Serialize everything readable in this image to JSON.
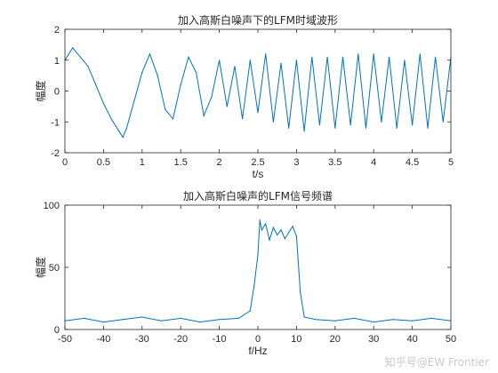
{
  "chart_data": [
    {
      "type": "line",
      "title": "加入高斯白噪声下的LFM时域波形",
      "xlabel": "t/s",
      "ylabel": "幅度",
      "xlim": [
        0,
        5
      ],
      "ylim": [
        -2,
        2
      ],
      "xticks": [
        "0",
        "0.5",
        "1",
        "1.5",
        "2",
        "2.5",
        "3",
        "3.5",
        "4",
        "4.5",
        "5"
      ],
      "yticks": [
        "-2",
        "-1",
        "0",
        "1",
        "2"
      ],
      "grid": false,
      "series": [
        {
          "color": "#0072BD",
          "x": [
            0,
            0.1,
            0.2,
            0.3,
            0.4,
            0.5,
            0.6,
            0.7,
            0.75,
            0.8,
            0.9,
            1.0,
            1.1,
            1.2,
            1.3,
            1.4,
            1.5,
            1.6,
            1.7,
            1.8,
            1.9,
            2.0,
            2.1,
            2.2,
            2.3,
            2.4,
            2.5,
            2.6,
            2.7,
            2.8,
            2.9,
            3.0,
            3.1,
            3.2,
            3.3,
            3.4,
            3.5,
            3.6,
            3.7,
            3.8,
            3.9,
            4.0,
            4.1,
            4.2,
            4.3,
            4.4,
            4.5,
            4.6,
            4.7,
            4.8,
            4.9,
            5.0
          ],
          "y": [
            1.0,
            1.4,
            1.1,
            0.8,
            0.2,
            -0.4,
            -0.9,
            -1.3,
            -1.5,
            -1.2,
            -0.3,
            0.6,
            1.2,
            0.5,
            -0.6,
            -0.9,
            0.2,
            1.1,
            0.6,
            -0.8,
            -0.2,
            1.0,
            -0.5,
            0.8,
            -0.9,
            1.0,
            -0.7,
            1.2,
            -1.0,
            0.9,
            -1.2,
            1.0,
            -1.3,
            1.1,
            -1.1,
            1.1,
            -1.2,
            1.1,
            -1.1,
            1.2,
            -1.2,
            1.2,
            -1.0,
            1.1,
            -1.2,
            1.0,
            -1.1,
            1.2,
            -1.2,
            1.1,
            -1.0,
            1.1
          ]
        }
      ]
    },
    {
      "type": "line",
      "title": "加入高斯白噪声的LFM信号频谱",
      "xlabel": "f/Hz",
      "ylabel": "幅度",
      "xlim": [
        -50,
        50
      ],
      "ylim": [
        0,
        100
      ],
      "xticks": [
        "-50",
        "-40",
        "-30",
        "-20",
        "-10",
        "0",
        "10",
        "20",
        "30",
        "40",
        "50"
      ],
      "yticks": [
        "0",
        "50",
        "100"
      ],
      "grid": false,
      "series": [
        {
          "color": "#0072BD",
          "x": [
            -50,
            -45,
            -40,
            -35,
            -30,
            -25,
            -20,
            -15,
            -10,
            -5,
            -2,
            -1,
            0,
            0.5,
            1,
            2,
            3,
            4,
            5,
            6,
            7,
            8,
            9,
            10,
            11,
            12,
            15,
            20,
            25,
            30,
            35,
            40,
            45,
            50
          ],
          "y": [
            7,
            9,
            6,
            8,
            10,
            7,
            9,
            6,
            8,
            9,
            15,
            35,
            60,
            88,
            80,
            85,
            72,
            82,
            76,
            80,
            73,
            78,
            83,
            75,
            30,
            10,
            8,
            7,
            9,
            6,
            8,
            7,
            9,
            7
          ]
        }
      ]
    }
  ],
  "watermark": "知乎号@EW Frontier"
}
